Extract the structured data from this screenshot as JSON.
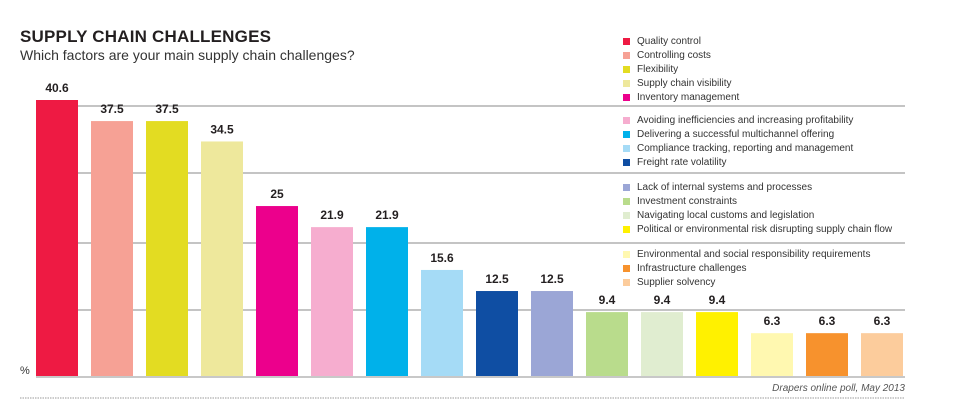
{
  "chart_data": {
    "type": "bar",
    "title": "SUPPLY CHAIN CHALLENGES",
    "subtitle": "Which factors are your main supply chain challenges?",
    "ylabel": "%",
    "source": "Drapers online poll, May 2013",
    "legend_placement": "top-right",
    "ylim": [
      0,
      40.6
    ],
    "categories": [
      "Quality control",
      "Controlling costs",
      "Flexibility",
      "Supply chain visibility",
      "Inventory management",
      "Avoiding inefficiencies and increasing profitability",
      "Delivering a successful multichannel offering",
      "Compliance tracking, reporting and management",
      "Freight rate volatility",
      "Lack of internal systems and processes",
      "Investment constraints",
      "Navigating local customs and legislation",
      "Political or environmental risk disrupting supply chain flow",
      "Environmental and social responsibility requirements",
      "Infrastructure challenges",
      "Supplier solvency"
    ],
    "values": [
      40.6,
      37.5,
      37.5,
      34.5,
      25,
      21.9,
      21.9,
      15.6,
      12.5,
      12.5,
      9.4,
      9.4,
      9.4,
      6.3,
      6.3,
      6.3
    ],
    "value_labels": [
      "40.6",
      "37.5",
      "37.5",
      "34.5",
      "25",
      "21.9",
      "21.9",
      "15.6",
      "12.5",
      "12.5",
      "9.4",
      "9.4",
      "9.4",
      "6.3",
      "6.3",
      "6.3"
    ],
    "colors": [
      "#ee1a43",
      "#f6a195",
      "#e3dc22",
      "#eee89c",
      "#ec008c",
      "#f6adcf",
      "#00b1ea",
      "#a5dbf6",
      "#0f4ea3",
      "#9ba6d6",
      "#b9dc8c",
      "#e0edd0",
      "#fff100",
      "#fff8b0",
      "#f7922d",
      "#fccc9c"
    ],
    "legend_groups": [
      [
        0,
        1,
        2,
        3,
        4
      ],
      [
        5,
        6,
        7,
        8
      ],
      [
        9,
        10,
        11,
        12
      ],
      [
        13,
        14,
        15
      ]
    ]
  }
}
